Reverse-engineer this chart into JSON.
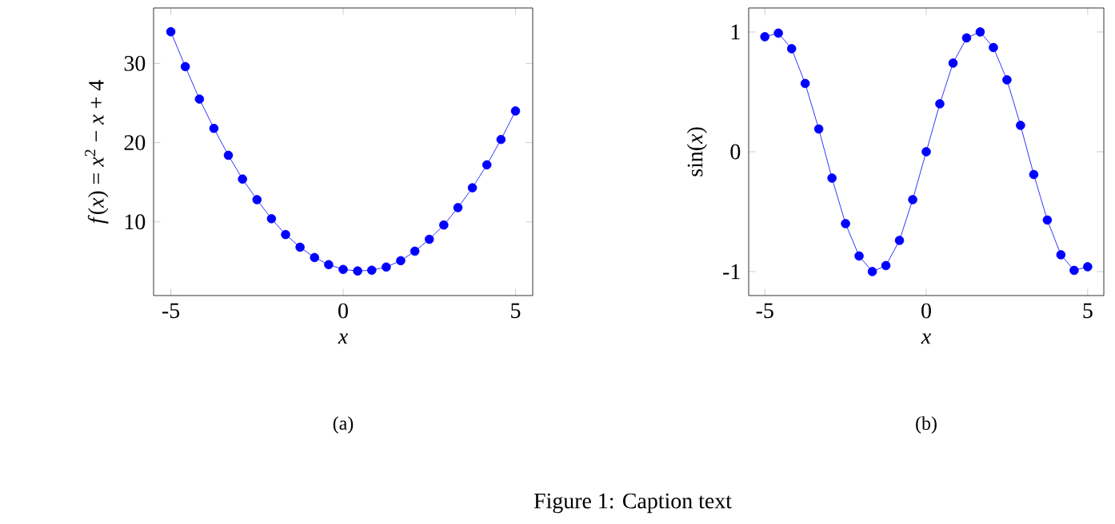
{
  "chart_data": [
    {
      "type": "line",
      "xlabel": "*x*",
      "ylabel": "*f*(*x*) = *x*$^{2}$ − *x* + 4",
      "annotations": [
        "(a)",
        "Figure 1: Caption text"
      ],
      "x": [
        -5,
        -4.58,
        -4.17,
        -3.75,
        -3.33,
        -2.92,
        -2.5,
        -2.08,
        -1.67,
        -1.25,
        -0.83,
        -0.42,
        0,
        0.42,
        0.83,
        1.25,
        1.67,
        2.08,
        2.5,
        2.92,
        3.33,
        3.75,
        4.17,
        4.58,
        5
      ],
      "series": [
        {
          "color": "#0000ff",
          "values": [
            34,
            29.6,
            25.5,
            21.8,
            18.4,
            15.4,
            12.8,
            10.4,
            8.4,
            6.8,
            5.5,
            4.6,
            4,
            3.8,
            3.9,
            4.3,
            5.1,
            6.3,
            7.8,
            9.6,
            11.8,
            14.3,
            17.2,
            20.4,
            24
          ]
        }
      ],
      "xlim": [
        -5.5,
        5.5
      ],
      "ylim": [
        0.7,
        37
      ],
      "xticks": [
        -5,
        0,
        5
      ],
      "yticks": [
        10,
        20,
        30
      ],
      "marker": "circle",
      "line_style": "solid"
    },
    {
      "type": "line",
      "xlabel": "*x*",
      "ylabel": "sin(*x*)",
      "annotations": [
        "(b)"
      ],
      "x": [
        -5,
        -4.58,
        -4.17,
        -3.75,
        -3.33,
        -2.92,
        -2.5,
        -2.08,
        -1.67,
        -1.25,
        -0.83,
        -0.42,
        0,
        0.42,
        0.83,
        1.25,
        1.67,
        2.08,
        2.5,
        2.92,
        3.33,
        3.75,
        4.17,
        4.58,
        5
      ],
      "series": [
        {
          "color": "#0000ff",
          "values": [
            0.96,
            0.99,
            0.86,
            0.57,
            0.19,
            -0.22,
            -0.6,
            -0.87,
            -1.0,
            -0.95,
            -0.74,
            -0.4,
            0,
            0.4,
            0.74,
            0.95,
            1.0,
            0.87,
            0.6,
            0.22,
            -0.19,
            -0.57,
            -0.86,
            -0.99,
            -0.96
          ]
        }
      ],
      "xlim": [
        -5.5,
        5.5
      ],
      "ylim": [
        -1.2,
        1.2
      ],
      "xticks": [
        -5,
        0,
        5
      ],
      "yticks": [
        -1,
        0,
        1
      ],
      "marker": "circle",
      "line_style": "solid"
    }
  ]
}
